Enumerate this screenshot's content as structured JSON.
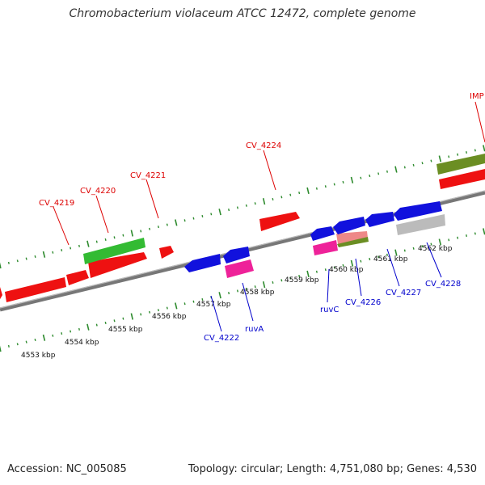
{
  "title": "Chromobacterium violaceum ATCC 12472, complete genome",
  "footer": {
    "accession": "Accession: NC_005085",
    "summary": "Topology: circular; Length: 4,751,080 bp; Genes: 4,530"
  },
  "colors": {
    "forward_gene": "#ee1111",
    "reverse_gene": "#1111dd",
    "rna_pink": "#ee2299",
    "green_gene": "#33bb33",
    "olive_gene": "#6b8e23",
    "gray_gene": "#bbbbbb",
    "backbone": "#777777",
    "tick": "#2e8b2e",
    "forward_label": "#dd0000",
    "reverse_label": "#0000cc"
  },
  "kbp_labels": [
    "4553 kbp",
    "4554 kbp",
    "4555 kbp",
    "4556 kbp",
    "4557 kbp",
    "4558 kbp",
    "4559 kbp",
    "4560 kbp",
    "4561 kbp",
    "4562 kbp"
  ],
  "forward_labels": [
    "CV_4219",
    "CV_4220",
    "CV_4221",
    "CV_4224",
    "IMP"
  ],
  "reverse_labels": [
    "CV_4222",
    "ruvA",
    "ruvC",
    "CV_4226",
    "CV_4227",
    "CV_4228"
  ]
}
